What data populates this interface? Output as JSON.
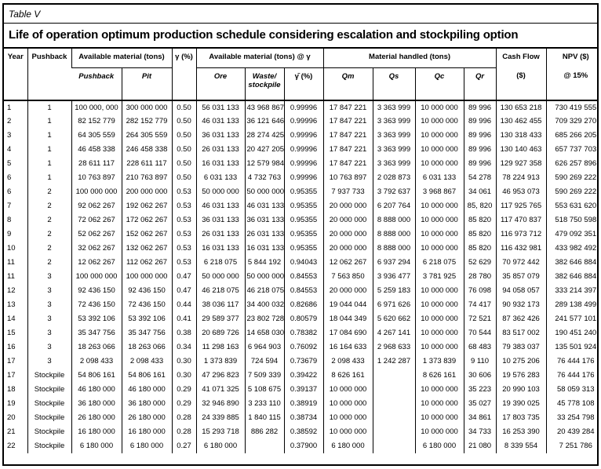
{
  "page": {
    "table_label": "Table V",
    "title": "Life of operation optimum production schedule considering escalation and stockpiling option"
  },
  "table": {
    "header": {
      "year": "Year",
      "pushback": "Pushback",
      "available_material": "Available material (tons)",
      "gamma": "γ (%)",
      "available_material_at_gamma": "Available material (tons) @ γ",
      "material_handled": "Material handled (tons)",
      "cash_flow_line1": "Cash Flow",
      "cash_flow_line2": "($)",
      "npv_line1": "NPV ($)",
      "npv_line2": "@ 15%",
      "sub_pushback": "Pushback",
      "sub_pit": "Pit",
      "sub_ore": "Ore",
      "sub_waste_stockpile": "Waste/ stockpile",
      "sub_gamma_bar": "γ̄ (%)",
      "sub_qm": "Qm",
      "sub_qs": "Qs",
      "sub_qc": "Qc",
      "sub_qr": "Qr"
    },
    "col_keys": [
      "year",
      "pushback",
      "avail-pushback",
      "avail-pit",
      "gamma",
      "ore",
      "waste-stockpile",
      "gamma-bar",
      "qm",
      "qs",
      "qc",
      "qr",
      "cash-flow",
      "npv"
    ],
    "rows": [
      [
        "1",
        "1",
        "100 000, 000",
        "300 000 000",
        "0.50",
        "56 031 133",
        "43 968 867",
        "0.99996",
        "17 847 221",
        "3 363 999",
        "10 000 000",
        "89 996",
        "130 653 218",
        "730 419 555"
      ],
      [
        "2",
        "1",
        "82 152 779",
        "282 152 779",
        "0.50",
        "46 031 133",
        "36 121 646",
        "0.99996",
        "17 847 221",
        "3 363 999",
        "10 000 000",
        "89 996",
        "130 462 455",
        "709 329 270"
      ],
      [
        "3",
        "1",
        "64 305 559",
        "264 305 559",
        "0.50",
        "36 031 133",
        "28 274 425",
        "0.99996",
        "17 847 221",
        "3 363 999",
        "10 000 000",
        "89 996",
        "130 318 433",
        "685 266 205"
      ],
      [
        "4",
        "1",
        "46 458 338",
        "246 458 338",
        "0.50",
        "26 031 133",
        "20 427 205",
        "0.99996",
        "17 847 221",
        "3 363 999",
        "10 000 000",
        "89 996",
        "130 140 463",
        "657 737 703"
      ],
      [
        "5",
        "1",
        "28 611 117",
        "228 611 117",
        "0.50",
        "16 031 133",
        "12 579 984",
        "0.99996",
        "17 847 221",
        "3 363 999",
        "10 000 000",
        "89 996",
        "129 927 358",
        "626 257 896"
      ],
      [
        "6",
        "1",
        "10 763 897",
        "210 763 897",
        "0.50",
        "6 031 133",
        "4 732 763",
        "0.99996",
        "10 763 897",
        "2 028 873",
        "6 031 133",
        "54 278",
        "78 224 913",
        "590 269 222"
      ],
      [
        "6",
        "2",
        "100 000 000",
        "200 000 000",
        "0.53",
        "50 000 000",
        "50 000 000",
        "0.95355",
        "7 937 733",
        "3 792 637",
        "3 968 867",
        "34 061",
        "46 953 073",
        "590 269 222"
      ],
      [
        "7",
        "2",
        "92 062 267",
        "192 062 267",
        "0.53",
        "46 031 133",
        "46 031 133",
        "0.95355",
        "20 000 000",
        "6 207 764",
        "10 000 000",
        "85, 820",
        "117 925 765",
        "553 631 620"
      ],
      [
        "8",
        "2",
        "72 062 267",
        "172 062 267",
        "0.53",
        "36 031 133",
        "36 031 133",
        "0.95355",
        "20 000 000",
        "8 888 000",
        "10 000 000",
        "85 820",
        "117 470 837",
        "518 750 598"
      ],
      [
        "9",
        "2",
        "52 062 267",
        "152 062 267",
        "0.53",
        "26 031 133",
        "26 031 133",
        "0.95355",
        "20 000 000",
        "8 888 000",
        "10 000 000",
        "85 820",
        "116 973 712",
        "479 092 351"
      ],
      [
        "10",
        "2",
        "32 062 267",
        "132 062 267",
        "0.53",
        "16 031 133",
        "16 031 133",
        "0.95355",
        "20 000 000",
        "8 888 000",
        "10 000 000",
        "85 820",
        "116 432 981",
        "433 982 492"
      ],
      [
        "11",
        "2",
        "12 062 267",
        "112 062 267",
        "0.53",
        "6 218 075",
        "5 844 192",
        "0.94043",
        "12 062 267",
        "6 937 294",
        "6 218 075",
        "52 629",
        "70 972 442",
        "382 646 884"
      ],
      [
        "11",
        "3",
        "100 000 000",
        "100 000 000",
        "0.47",
        "50 000 000",
        "50 000 000",
        "0.84553",
        "7 563 850",
        "3 936 477",
        "3 781 925",
        "28 780",
        "35 857 079",
        "382 646 884"
      ],
      [
        "12",
        "3",
        "92 436 150",
        "92 436 150",
        "0.47",
        "46 218 075",
        "46 218 075",
        "0.84553",
        "20 000 000",
        "5 259 183",
        "10 000 000",
        "76 098",
        "94 058 057",
        "333 214 397"
      ],
      [
        "13",
        "3",
        "72 436 150",
        "72 436 150",
        "0.44",
        "38 036 117",
        "34 400 032",
        "0.82686",
        "19 044 044",
        "6 971 626",
        "10 000 000",
        "74 417",
        "90 932 173",
        "289 138 499"
      ],
      [
        "14",
        "3",
        "53 392 106",
        "53 392 106",
        "0.41",
        "29 589 377",
        "23 802 728",
        "0.80579",
        "18 044 349",
        "5 620 662",
        "10 000 000",
        "72 521",
        "87 362 426",
        "241 577 101"
      ],
      [
        "15",
        "3",
        "35 347 756",
        "35 347 756",
        "0.38",
        "20 689 726",
        "14 658 030",
        "0.78382",
        "17 084 690",
        "4 267 141",
        "10 000 000",
        "70 544",
        "83 517 002",
        "190 451 240"
      ],
      [
        "16",
        "3",
        "18 263 066",
        "18 263 066",
        "0.34",
        "11 298 163",
        "6 964 903",
        "0.76092",
        "16 164 633",
        "2 968 633",
        "10 000 000",
        "68 483",
        "79 383 037",
        "135 501 924"
      ],
      [
        "17",
        "3",
        "2 098 433",
        "2 098 433",
        "0.30",
        "1 373 839",
        "724 594",
        "0.73679",
        "2 098 433",
        "1 242 287",
        "1 373 839",
        "9 110",
        "10 275 206",
        "76 444 176"
      ],
      [
        "17",
        "Stockpile",
        "54 806 161",
        "54 806 161",
        "0.30",
        "47 296 823",
        "7 509 339",
        "0.39422",
        "8 626 161",
        "",
        "8 626 161",
        "30 606",
        "19 576 283",
        "76 444 176"
      ],
      [
        "18",
        "Stockpile",
        "46 180 000",
        "46 180 000",
        "0.29",
        "41 071 325",
        "5 108 675",
        "0.39137",
        "10 000 000",
        "",
        "10 000 000",
        "35 223",
        "20 990 103",
        "58 059 313"
      ],
      [
        "19",
        "Stockpile",
        "36 180 000",
        "36 180 000",
        "0.29",
        "32 946 890",
        "3 233 110",
        "0.38919",
        "10 000 000",
        "",
        "10 000 000",
        "35 027",
        "19 390 025",
        "45 778 108"
      ],
      [
        "20",
        "Stockpile",
        "26 180 000",
        "26 180 000",
        "0.28",
        "24 339 885",
        "1 840 115",
        "0.38734",
        "10 000 000",
        "",
        "10 000 000",
        "34 861",
        "17 803 735",
        "33 254 798"
      ],
      [
        "21",
        "Stockpile",
        "16 180 000",
        "16 180 000",
        "0.28",
        "15 293 718",
        "886 282",
        "0.38592",
        "10 000 000",
        "",
        "10 000 000",
        "34 733",
        "16 253 390",
        "20 439 284"
      ],
      [
        "22",
        "Stockpile",
        "6 180 000",
        "6 180 000",
        "0.27",
        "6 180 000",
        "",
        "0.37900",
        "6 180 000",
        "",
        "6 180 000",
        "21 080",
        "8 339 554",
        "7 251 786"
      ]
    ]
  }
}
